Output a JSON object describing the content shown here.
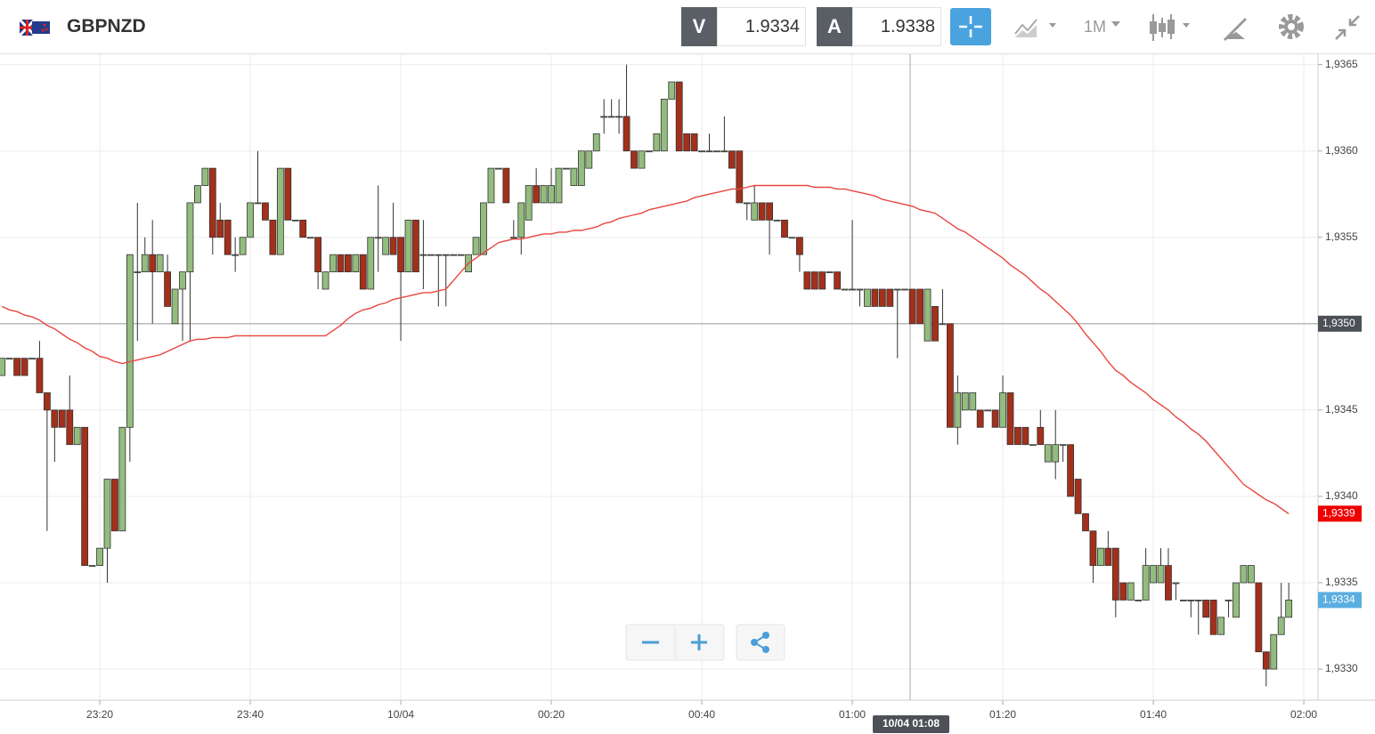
{
  "header": {
    "symbol": "GBPNZD",
    "sell": {
      "label": "V",
      "price": "1.9334"
    },
    "buy": {
      "label": "A",
      "price": "1.9338"
    },
    "timeframe": "1M"
  },
  "chart_data": {
    "type": "candlestick",
    "categories": [
      null,
      null,
      null,
      null,
      null,
      null,
      null,
      null,
      null,
      null,
      null,
      null,
      null,
      "23:20",
      null,
      null,
      null,
      null,
      null,
      null,
      null,
      null,
      null,
      null,
      null,
      null,
      null,
      null,
      null,
      null,
      null,
      null,
      null,
      "23:40",
      null,
      null,
      null,
      null,
      null,
      null,
      null,
      null,
      null,
      null,
      null,
      null,
      null,
      null,
      null,
      null,
      null,
      null,
      null,
      "10/04",
      null,
      null,
      null,
      null,
      null,
      null,
      null,
      null,
      null,
      null,
      null,
      null,
      null,
      null,
      null,
      null,
      null,
      null,
      null,
      "00:20",
      null,
      null,
      null,
      null,
      null,
      null,
      null,
      null,
      null,
      null,
      null,
      null,
      null,
      null,
      null,
      null,
      null,
      null,
      null,
      "00:40",
      null,
      null,
      null,
      null,
      null,
      null,
      null,
      null,
      null,
      null,
      null,
      null,
      null,
      null,
      null,
      null,
      null,
      null,
      null,
      "01:00",
      null,
      null,
      null,
      null,
      null,
      null,
      null,
      null,
      null,
      null,
      null,
      null,
      null,
      null,
      null,
      null,
      null,
      null,
      null,
      "01:20",
      null,
      null,
      null,
      null,
      null,
      null,
      null,
      null,
      null,
      null,
      null,
      null,
      null,
      null,
      null,
      null,
      null,
      null,
      null,
      "01:40",
      null,
      null,
      null,
      null,
      null,
      null,
      null,
      null,
      null,
      null,
      null,
      null,
      null,
      null,
      null,
      null,
      null,
      null,
      null,
      "02:00"
    ],
    "open": [
      1.9347,
      1.9348,
      1.9348,
      1.9348,
      1.9348,
      1.9348,
      1.9346,
      1.9345,
      1.9345,
      1.9345,
      1.9343,
      1.9344,
      1.9336,
      1.9336,
      1.9337,
      1.9341,
      1.9338,
      1.9344,
      1.9353,
      1.9353,
      1.9354,
      1.9353,
      1.9353,
      1.935,
      1.9352,
      1.9353,
      1.9357,
      1.9358,
      1.9359,
      1.9356,
      1.9356,
      1.9354,
      1.9354,
      1.9355,
      1.9357,
      1.9357,
      1.9356,
      1.9354,
      1.9359,
      1.9356,
      1.9356,
      1.9355,
      1.9355,
      1.9352,
      1.9353,
      1.9354,
      1.9354,
      1.9353,
      1.9354,
      1.9352,
      1.9355,
      1.9354,
      1.9355,
      1.9355,
      1.9353,
      1.9356,
      1.9354,
      1.9354,
      1.9354,
      1.9354,
      1.9354,
      1.9354,
      1.9353,
      1.9354,
      1.9354,
      1.9357,
      1.9359,
      1.9359,
      1.9355,
      1.9355,
      1.9356,
      1.9358,
      1.9357,
      1.9357,
      1.9357,
      1.9359,
      1.9358,
      1.9358,
      1.9359,
      1.936,
      1.9362,
      1.9362,
      1.9362,
      1.9362,
      1.936,
      1.9359,
      1.936,
      1.936,
      1.936,
      1.9363,
      1.9364,
      1.9361,
      1.9361,
      1.936,
      1.936,
      1.936,
      1.936,
      1.936,
      1.936,
      1.9357,
      1.9356,
      1.9357,
      1.9357,
      1.9356,
      1.9356,
      1.9355,
      1.9355,
      1.9353,
      1.9353,
      1.9353,
      1.9353,
      1.9353,
      1.9352,
      1.9352,
      1.9352,
      1.9351,
      1.9352,
      1.9352,
      1.9352,
      1.9352,
      1.9352,
      1.9352,
      1.9352,
      1.9349,
      1.9351,
      1.935,
      1.935,
      1.9344,
      1.9345,
      1.9345,
      1.9345,
      1.9345,
      1.9345,
      1.9344,
      1.9346,
      1.9344,
      1.9344,
      1.9343,
      1.9344,
      1.9342,
      1.9342,
      1.9343,
      1.9343,
      1.9341,
      1.9339,
      1.9338,
      1.9336,
      1.9337,
      1.9337,
      1.9335,
      1.9334,
      1.9334,
      1.9334,
      1.9335,
      1.9335,
      1.9336,
      1.9335,
      1.9334,
      1.9334,
      1.9334,
      1.9334,
      1.9334,
      1.9332,
      1.9334,
      1.9333,
      1.9335,
      1.9335,
      1.9335,
      1.9331,
      1.933,
      1.9332,
      1.9333,
      null,
      null
    ],
    "high": [
      1.9348,
      1.9348,
      1.9348,
      1.9348,
      1.9348,
      1.9349,
      1.9346,
      1.9345,
      1.9345,
      1.9347,
      1.9344,
      1.9344,
      1.9336,
      1.9337,
      1.9341,
      1.9341,
      1.9344,
      1.9354,
      1.9357,
      1.9355,
      1.9356,
      1.9354,
      1.9354,
      1.9352,
      1.9353,
      1.9357,
      1.9358,
      1.9359,
      1.9359,
      1.9357,
      1.9356,
      1.9355,
      1.9355,
      1.9357,
      1.936,
      1.9357,
      1.9356,
      1.9359,
      1.9359,
      1.9356,
      1.9356,
      1.9355,
      1.9355,
      1.9353,
      1.9354,
      1.9354,
      1.9354,
      1.9354,
      1.9354,
      1.9355,
      1.9358,
      1.9355,
      1.9357,
      1.9355,
      1.9356,
      1.9356,
      1.9356,
      1.9354,
      1.9354,
      1.9354,
      1.9354,
      1.9354,
      1.9354,
      1.9355,
      1.9357,
      1.9359,
      1.9359,
      1.9359,
      1.9356,
      1.9357,
      1.9358,
      1.9359,
      1.9358,
      1.9359,
      1.9359,
      1.9359,
      1.9359,
      1.936,
      1.936,
      1.9361,
      1.9363,
      1.9363,
      1.9363,
      1.9365,
      1.936,
      1.936,
      1.936,
      1.9361,
      1.9363,
      1.9364,
      1.9364,
      1.9361,
      1.9361,
      1.936,
      1.9361,
      1.936,
      1.9362,
      1.936,
      1.936,
      1.9357,
      1.9358,
      1.9357,
      1.9357,
      1.9356,
      1.9356,
      1.9355,
      1.9355,
      1.9353,
      1.9353,
      1.9353,
      1.9353,
      1.9353,
      1.9352,
      1.9356,
      1.9352,
      1.9352,
      1.9352,
      1.9352,
      1.9352,
      1.9352,
      1.9352,
      1.9352,
      1.9352,
      1.9352,
      1.9351,
      1.9352,
      1.935,
      1.9347,
      1.9346,
      1.9346,
      1.9345,
      1.9345,
      1.9345,
      1.9347,
      1.9346,
      1.9344,
      1.9344,
      1.9343,
      1.9345,
      1.9343,
      1.9345,
      1.9343,
      1.9343,
      1.9341,
      1.9339,
      1.9338,
      1.9337,
      1.9338,
      1.9337,
      1.9335,
      1.9335,
      1.9334,
      1.9337,
      1.9336,
      1.9337,
      1.9337,
      1.9335,
      1.9334,
      1.9334,
      1.9334,
      1.9334,
      1.9334,
      1.9333,
      1.9334,
      1.9335,
      1.9336,
      1.9336,
      1.9335,
      1.9331,
      1.9332,
      1.9335,
      1.9335,
      null,
      null
    ],
    "low": [
      1.9347,
      1.9348,
      1.9347,
      1.9347,
      1.9348,
      1.9346,
      1.9338,
      1.9342,
      1.9344,
      1.9343,
      1.9343,
      1.9336,
      1.9336,
      1.9336,
      1.9335,
      1.9338,
      1.9338,
      1.9342,
      1.9349,
      1.9353,
      1.935,
      1.9353,
      1.9351,
      1.935,
      1.9349,
      1.9349,
      1.9357,
      1.9358,
      1.9354,
      1.9355,
      1.9354,
      1.9353,
      1.9354,
      1.9355,
      1.9357,
      1.9356,
      1.9354,
      1.9354,
      1.9356,
      1.9356,
      1.9355,
      1.9355,
      1.9352,
      1.9352,
      1.9353,
      1.9353,
      1.9353,
      1.9353,
      1.9352,
      1.9352,
      1.9353,
      1.9354,
      1.9354,
      1.9349,
      1.9353,
      1.9353,
      1.9352,
      1.9354,
      1.9351,
      1.9351,
      1.9354,
      1.9354,
      1.9353,
      1.9354,
      1.9354,
      1.9357,
      1.9359,
      1.9357,
      1.9355,
      1.9354,
      1.9356,
      1.9357,
      1.9357,
      1.9357,
      1.9357,
      1.9359,
      1.9358,
      1.9358,
      1.9359,
      1.936,
      1.9361,
      1.9362,
      1.9361,
      1.936,
      1.9359,
      1.9359,
      1.936,
      1.936,
      1.936,
      1.9363,
      1.936,
      1.936,
      1.936,
      1.936,
      1.936,
      1.936,
      1.936,
      1.9359,
      1.9357,
      1.9356,
      1.9356,
      1.9356,
      1.9354,
      1.9356,
      1.9355,
      1.9355,
      1.9353,
      1.9352,
      1.9352,
      1.9352,
      1.9353,
      1.9352,
      1.9352,
      1.9352,
      1.9351,
      1.9351,
      1.9351,
      1.9351,
      1.9351,
      1.9348,
      1.9352,
      1.935,
      1.935,
      1.9349,
      1.9349,
      1.935,
      1.9344,
      1.9343,
      1.9345,
      1.9345,
      1.9344,
      1.9345,
      1.9344,
      1.9344,
      1.9343,
      1.9343,
      1.9343,
      1.9343,
      1.9343,
      1.9342,
      1.9341,
      1.9342,
      1.934,
      1.9339,
      1.9338,
      1.9335,
      1.9336,
      1.9336,
      1.9333,
      1.9334,
      1.9334,
      1.9334,
      1.9334,
      1.9335,
      1.9335,
      1.9334,
      1.9334,
      1.9334,
      1.9333,
      1.9332,
      1.9333,
      1.9332,
      1.9332,
      1.9333,
      1.9333,
      1.9335,
      1.9335,
      1.9331,
      1.9329,
      1.933,
      1.9332,
      1.9333,
      null,
      null
    ],
    "close": [
      1.9348,
      1.9348,
      1.9347,
      1.9347,
      1.9348,
      1.9346,
      1.9345,
      1.9344,
      1.9344,
      1.9343,
      1.9344,
      1.9336,
      1.9336,
      1.9337,
      1.9341,
      1.9338,
      1.9344,
      1.9354,
      1.9353,
      1.9354,
      1.9353,
      1.9354,
      1.9351,
      1.9352,
      1.9353,
      1.9357,
      1.9358,
      1.9359,
      1.9355,
      1.9355,
      1.9354,
      1.9354,
      1.9355,
      1.9357,
      1.9357,
      1.9356,
      1.9354,
      1.9359,
      1.9356,
      1.9356,
      1.9355,
      1.9355,
      1.9353,
      1.9353,
      1.9354,
      1.9353,
      1.9353,
      1.9354,
      1.9352,
      1.9355,
      1.9355,
      1.9355,
      1.9354,
      1.9353,
      1.9356,
      1.9353,
      1.9354,
      1.9354,
      1.9354,
      1.9354,
      1.9354,
      1.9354,
      1.9354,
      1.9355,
      1.9357,
      1.9359,
      1.9359,
      1.9357,
      1.9355,
      1.9357,
      1.9358,
      1.9357,
      1.9358,
      1.9358,
      1.9359,
      1.9359,
      1.9359,
      1.936,
      1.936,
      1.9361,
      1.9362,
      1.9362,
      1.9362,
      1.936,
      1.9359,
      1.936,
      1.936,
      1.9361,
      1.9363,
      1.9364,
      1.936,
      1.936,
      1.936,
      1.936,
      1.936,
      1.936,
      1.936,
      1.9359,
      1.9357,
      1.9357,
      1.9357,
      1.9356,
      1.9356,
      1.9356,
      1.9355,
      1.9355,
      1.9354,
      1.9352,
      1.9352,
      1.9352,
      1.9353,
      1.9352,
      1.9352,
      1.9352,
      1.9352,
      1.9352,
      1.9351,
      1.9351,
      1.9351,
      1.9352,
      1.9352,
      1.935,
      1.935,
      1.9352,
      1.9349,
      1.935,
      1.9344,
      1.9346,
      1.9346,
      1.9346,
      1.9344,
      1.9345,
      1.9344,
      1.9346,
      1.9343,
      1.9343,
      1.9343,
      1.9343,
      1.9343,
      1.9343,
      1.9343,
      1.9343,
      1.934,
      1.9339,
      1.9338,
      1.9336,
      1.9337,
      1.9336,
      1.9334,
      1.9334,
      1.9335,
      1.9334,
      1.9336,
      1.9336,
      1.9336,
      1.9334,
      1.9335,
      1.9334,
      1.9334,
      1.9334,
      1.9333,
      1.9332,
      1.9333,
      1.9334,
      1.9335,
      1.9336,
      1.9336,
      1.9331,
      1.933,
      1.9332,
      1.9333,
      1.9334,
      null,
      null
    ],
    "up_color": "#93bd7e",
    "down_color": "#a3301b",
    "ma": {
      "color": "#e8463f",
      "last_label": "1,9339",
      "values": [
        1.9351,
        1.93508,
        1.93507,
        1.93505,
        1.93504,
        1.93502,
        1.93499,
        1.93497,
        1.93494,
        1.93491,
        1.93489,
        1.93486,
        1.93484,
        1.93481,
        1.9348,
        1.93478,
        1.93477,
        1.93478,
        1.93479,
        1.9348,
        1.93481,
        1.93482,
        1.93484,
        1.93486,
        1.93488,
        1.9349,
        1.93491,
        1.93491,
        1.93492,
        1.93492,
        1.93492,
        1.93493,
        1.93493,
        1.93493,
        1.93493,
        1.93493,
        1.93493,
        1.93493,
        1.93493,
        1.93493,
        1.93493,
        1.93493,
        1.93493,
        1.93493,
        1.93496,
        1.93499,
        1.93503,
        1.93506,
        1.93508,
        1.93509,
        1.93511,
        1.93512,
        1.93514,
        1.93515,
        1.93516,
        1.93517,
        1.93518,
        1.93518,
        1.93519,
        1.9352,
        1.93525,
        1.9353,
        1.93535,
        1.93538,
        1.93541,
        1.93544,
        1.93547,
        1.93548,
        1.93549,
        1.93549,
        1.9355,
        1.93551,
        1.93552,
        1.93552,
        1.93553,
        1.93553,
        1.93554,
        1.93554,
        1.93555,
        1.93556,
        1.93558,
        1.93559,
        1.93561,
        1.93562,
        1.93563,
        1.93564,
        1.93566,
        1.93567,
        1.93568,
        1.93569,
        1.9357,
        1.93571,
        1.93573,
        1.93574,
        1.93575,
        1.93576,
        1.93577,
        1.93578,
        1.93578,
        1.93579,
        1.9358,
        1.9358,
        1.9358,
        1.9358,
        1.9358,
        1.9358,
        1.9358,
        1.9358,
        1.93579,
        1.93579,
        1.93579,
        1.93578,
        1.93578,
        1.93577,
        1.93576,
        1.93575,
        1.93574,
        1.93572,
        1.93571,
        1.9357,
        1.93569,
        1.93568,
        1.93566,
        1.93565,
        1.93564,
        1.93561,
        1.93558,
        1.93555,
        1.93553,
        1.9355,
        1.93547,
        1.93544,
        1.93541,
        1.93538,
        1.93534,
        1.93531,
        1.93528,
        1.93524,
        1.9352,
        1.93517,
        1.93513,
        1.93509,
        1.93505,
        1.935,
        1.93494,
        1.93489,
        1.93484,
        1.93478,
        1.93473,
        1.9347,
        1.93466,
        1.93463,
        1.9346,
        1.93456,
        1.93453,
        1.9345,
        1.93446,
        1.93443,
        1.93439,
        1.93436,
        1.93432,
        1.93427,
        1.93422,
        1.93417,
        1.93412,
        1.93407,
        1.93404,
        1.93401,
        1.93398,
        1.93396,
        1.93393,
        1.9339,
        null,
        null
      ]
    },
    "last_price": {
      "value": 1.9334,
      "label": "1,9334",
      "color": "#5aaee0"
    },
    "crosshair": {
      "x_label": "10/04 01:08",
      "y": {
        "value": 1.935,
        "label": "1,9350"
      }
    },
    "ylim": [
      1.93282,
      1.93656
    ],
    "yticks": [
      {
        "value": 1.933,
        "label": "1,9330"
      },
      {
        "value": 1.9335,
        "label": "1,9335"
      },
      {
        "value": 1.934,
        "label": "1,9340"
      },
      {
        "value": 1.9345,
        "label": "1,9345"
      },
      {
        "value": 1.935,
        "label": "1,9350"
      },
      {
        "value": 1.9355,
        "label": "1,9355"
      },
      {
        "value": 1.936,
        "label": "1,9360"
      },
      {
        "value": 1.9365,
        "label": "1,9365"
      }
    ],
    "grid": true
  }
}
